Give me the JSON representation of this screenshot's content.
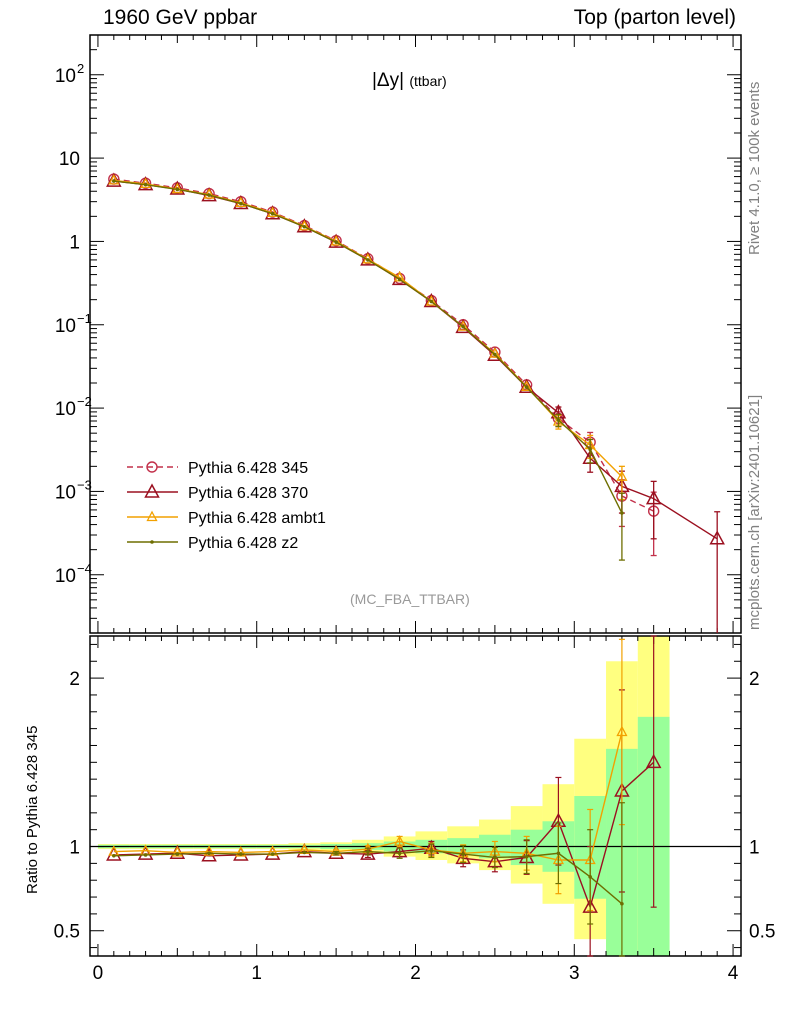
{
  "header": {
    "left": "1960 GeV ppbar",
    "right": "Top (parton level)"
  },
  "side_labels": {
    "rivet": "Rivet 4.1.0, ≥ 100k events",
    "mcplots": "mcplots.cern.ch [arXiv:2401.10621]"
  },
  "colors": {
    "p345": "#c2304a",
    "p370": "#9b1020",
    "ambt1": "#f2a100",
    "z2": "#6e6e00",
    "band_yellow": "#ffff80",
    "band_green": "#99ff99"
  },
  "chart_data": {
    "type": "line",
    "title": "|Δy| (ttbar)",
    "title_main": "|Δy|",
    "title_sub": "(ttbar)",
    "analysis_label": "(MC_FBA_TTBAR)",
    "xlabel": "",
    "ylabel": "",
    "ratio_ylabel": "Ratio to Pythia 6.428 345",
    "xlim": [
      -0.05,
      4.05
    ],
    "ylim": [
      2e-05,
      300
    ],
    "yscale": "log",
    "ratio_ylim": [
      0.35,
      2.25
    ],
    "x_ticks": [
      "0",
      "1",
      "2",
      "3",
      "4"
    ],
    "y_ticks": [
      "10^-4",
      "10^-3",
      "10^-2",
      "10^-1",
      "1",
      "10",
      "10^2"
    ],
    "ratio_ticks": [
      "0.5",
      "1",
      "2"
    ],
    "legend": [
      "Pythia 6.428 345",
      "Pythia 6.428 370",
      "Pythia 6.428 ambt1",
      "Pythia 6.428 z2"
    ],
    "series": [
      {
        "name": "Pythia 6.428 345",
        "style": "dashed-circle",
        "x": [
          0.1,
          0.3,
          0.5,
          0.7,
          0.9,
          1.1,
          1.3,
          1.5,
          1.7,
          1.9,
          2.1,
          2.3,
          2.5,
          2.7,
          2.9,
          3.1,
          3.3,
          3.5
        ],
        "values": [
          5.6,
          5.0,
          4.4,
          3.75,
          3.0,
          2.25,
          1.55,
          1.02,
          0.62,
          0.36,
          0.195,
          0.1,
          0.047,
          0.019,
          0.0075,
          0.0039,
          0.00088,
          0.00058
        ],
        "errors_low": [
          0,
          0,
          0,
          0,
          0,
          0,
          0,
          0,
          0,
          0,
          0,
          0,
          0,
          0,
          0.0015,
          0.0012,
          0.0005,
          0.00041
        ],
        "errors_high": [
          0,
          0,
          0,
          0,
          0,
          0,
          0,
          0,
          0,
          0,
          0,
          0,
          0,
          0,
          0.0015,
          0.0012,
          0.0005,
          0.0004
        ]
      },
      {
        "name": "Pythia 6.428 370",
        "style": "solid-triangle",
        "x": [
          0.1,
          0.3,
          0.5,
          0.7,
          0.9,
          1.1,
          1.3,
          1.5,
          1.7,
          1.9,
          2.1,
          2.3,
          2.5,
          2.7,
          2.9,
          3.1,
          3.3,
          3.5,
          3.9
        ],
        "values": [
          5.3,
          4.8,
          4.25,
          3.55,
          2.85,
          2.15,
          1.5,
          0.98,
          0.6,
          0.35,
          0.19,
          0.093,
          0.043,
          0.0178,
          0.0088,
          0.0025,
          0.00115,
          0.00082,
          0.00027
        ],
        "errors_low": [
          0,
          0,
          0,
          0,
          0,
          0,
          0,
          0,
          0,
          0,
          0,
          0,
          0,
          0,
          0.0015,
          0.0008,
          0.0006,
          0.00055,
          0.00026
        ],
        "errors_high": [
          0,
          0,
          0,
          0,
          0,
          0,
          0,
          0,
          0,
          0,
          0,
          0,
          0,
          0,
          0.0015,
          0.0008,
          0.0006,
          0.0005,
          0.0003
        ]
      },
      {
        "name": "Pythia 6.428 ambt1",
        "style": "solid-small-triangle",
        "x": [
          0.1,
          0.3,
          0.5,
          0.7,
          0.9,
          1.1,
          1.3,
          1.5,
          1.7,
          1.9,
          2.1,
          2.3,
          2.5,
          2.7,
          2.9,
          3.1,
          3.3
        ],
        "values": [
          5.4,
          4.9,
          4.25,
          3.65,
          2.9,
          2.2,
          1.52,
          1.0,
          0.61,
          0.37,
          0.19,
          0.095,
          0.045,
          0.018,
          0.0069,
          0.0036,
          0.0015
        ],
        "errors_low": [
          0,
          0,
          0,
          0,
          0,
          0,
          0,
          0,
          0,
          0,
          0,
          0,
          0,
          0,
          0.0013,
          0.0011,
          0.0007
        ],
        "errors_high": [
          0,
          0,
          0,
          0,
          0,
          0,
          0,
          0,
          0,
          0,
          0,
          0,
          0,
          0,
          0.0013,
          0.0011,
          0.0005
        ]
      },
      {
        "name": "Pythia 6.428 z2",
        "style": "solid-dot",
        "x": [
          0.1,
          0.3,
          0.5,
          0.7,
          0.9,
          1.1,
          1.3,
          1.5,
          1.7,
          1.9,
          2.1,
          2.3,
          2.5,
          2.7,
          2.9,
          3.1,
          3.3
        ],
        "values": [
          5.3,
          4.8,
          4.2,
          3.6,
          2.85,
          2.15,
          1.5,
          0.98,
          0.6,
          0.35,
          0.19,
          0.095,
          0.044,
          0.0178,
          0.0072,
          0.0032,
          0.00055
        ],
        "errors_low": [
          0,
          0,
          0,
          0,
          0,
          0,
          0,
          0,
          0,
          0,
          0,
          0,
          0,
          0,
          0.0012,
          0.001,
          0.0004
        ],
        "errors_high": [
          0,
          0,
          0,
          0,
          0,
          0,
          0,
          0,
          0,
          0,
          0,
          0,
          0,
          0,
          0.0012,
          0.001,
          0.0004
        ]
      }
    ],
    "ratio_band": {
      "x_edges": [
        0.0,
        0.2,
        0.4,
        0.6,
        0.8,
        1.0,
        1.2,
        1.4,
        1.6,
        1.8,
        2.0,
        2.2,
        2.4,
        2.6,
        2.8,
        3.0,
        3.2,
        3.4,
        3.6
      ],
      "yellow_low": [
        0.985,
        0.985,
        0.985,
        0.985,
        0.985,
        0.985,
        0.98,
        0.975,
        0.96,
        0.94,
        0.92,
        0.9,
        0.86,
        0.78,
        0.66,
        0.45,
        0.35,
        0.35
      ],
      "yellow_high": [
        1.015,
        1.015,
        1.015,
        1.015,
        1.015,
        1.015,
        1.02,
        1.025,
        1.04,
        1.06,
        1.09,
        1.12,
        1.16,
        1.24,
        1.37,
        1.64,
        2.1,
        2.25
      ],
      "green_low": [
        0.99,
        0.99,
        0.99,
        0.99,
        0.99,
        0.99,
        0.99,
        0.985,
        0.98,
        0.97,
        0.96,
        0.95,
        0.93,
        0.89,
        0.85,
        0.69,
        0.35,
        0.35
      ],
      "green_high": [
        1.01,
        1.01,
        1.01,
        1.01,
        1.01,
        1.01,
        1.01,
        1.015,
        1.02,
        1.03,
        1.04,
        1.05,
        1.07,
        1.1,
        1.15,
        1.3,
        1.58,
        1.77
      ]
    },
    "ratio_series": [
      {
        "name": "Pythia 6.428 370",
        "x": [
          0.1,
          0.3,
          0.5,
          0.7,
          0.9,
          1.1,
          1.3,
          1.5,
          1.7,
          1.9,
          2.1,
          2.3,
          2.5,
          2.7,
          2.9,
          3.1,
          3.3,
          3.5
        ],
        "values": [
          0.95,
          0.955,
          0.96,
          0.945,
          0.95,
          0.955,
          0.97,
          0.96,
          0.955,
          0.97,
          0.99,
          0.93,
          0.91,
          0.935,
          1.15,
          0.64,
          1.33,
          1.5
        ],
        "errors": [
          0,
          0,
          0,
          0,
          0,
          0,
          0,
          0.01,
          0.02,
          0.03,
          0.04,
          0.05,
          0.06,
          0.1,
          0.26,
          0.36,
          0.6,
          0.86
        ]
      },
      {
        "name": "Pythia 6.428 ambt1",
        "x": [
          0.1,
          0.3,
          0.5,
          0.7,
          0.9,
          1.1,
          1.3,
          1.5,
          1.7,
          1.9,
          2.1,
          2.3,
          2.5,
          2.7,
          2.9,
          3.1,
          3.3
        ],
        "values": [
          0.97,
          0.975,
          0.965,
          0.97,
          0.965,
          0.97,
          0.98,
          0.97,
          0.985,
          1.03,
          0.98,
          0.96,
          0.97,
          0.96,
          0.92,
          0.92,
          1.68
        ],
        "errors": [
          0,
          0,
          0,
          0,
          0,
          0,
          0,
          0.01,
          0.02,
          0.03,
          0.04,
          0.05,
          0.06,
          0.1,
          0.2,
          0.3,
          0.55
        ]
      },
      {
        "name": "Pythia 6.428 z2",
        "x": [
          0.1,
          0.3,
          0.5,
          0.7,
          0.9,
          1.1,
          1.3,
          1.5,
          1.7,
          1.9,
          2.1,
          2.3,
          2.5,
          2.7,
          2.9,
          3.1,
          3.3
        ],
        "values": [
          0.945,
          0.95,
          0.955,
          0.96,
          0.955,
          0.955,
          0.965,
          0.96,
          0.97,
          0.96,
          0.975,
          0.955,
          0.935,
          0.94,
          0.96,
          0.82,
          0.66
        ],
        "errors": [
          0,
          0,
          0,
          0,
          0,
          0,
          0,
          0.01,
          0.02,
          0.03,
          0.04,
          0.05,
          0.06,
          0.1,
          0.18,
          0.28,
          0.6
        ]
      }
    ]
  }
}
